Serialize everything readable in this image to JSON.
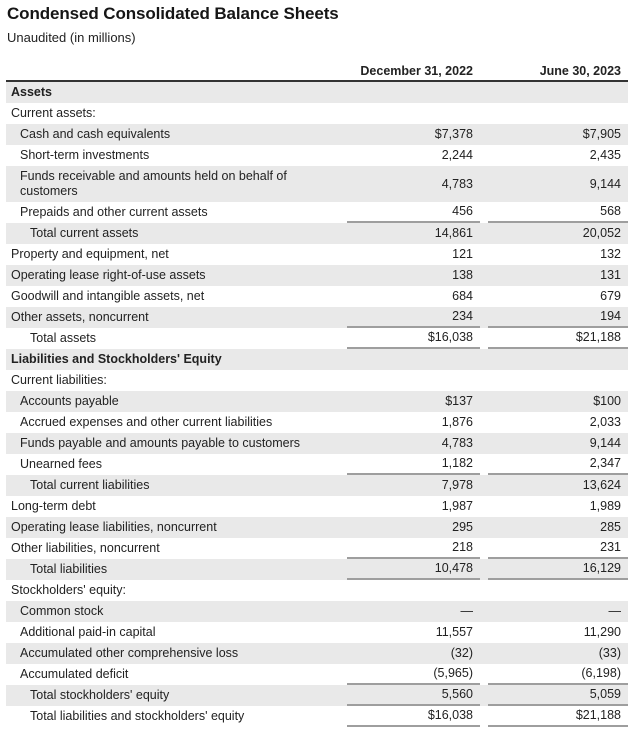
{
  "page": {
    "title": "Condensed Consolidated Balance Sheets",
    "subtitle": "Unaudited (in millions)"
  },
  "table": {
    "column_headers": [
      "December 31, 2022",
      "June 30, 2023"
    ],
    "rows": [
      {
        "label": "Assets",
        "values": [
          "",
          ""
        ],
        "indent": 0,
        "bold": true
      },
      {
        "label": "Current assets:",
        "values": [
          "",
          ""
        ],
        "indent": 0
      },
      {
        "label": "Cash and cash equivalents",
        "values": [
          "$7,378",
          "$7,905"
        ],
        "indent": 1
      },
      {
        "label": "Short-term investments",
        "values": [
          "2,244",
          "2,435"
        ],
        "indent": 1
      },
      {
        "label": "Funds receivable and amounts held on behalf of customers",
        "values": [
          "4,783",
          "9,144"
        ],
        "indent": 1,
        "tall": true
      },
      {
        "label": "Prepaids and other current assets",
        "values": [
          "456",
          "568"
        ],
        "indent": 1,
        "underline": true
      },
      {
        "label": "Total current assets",
        "values": [
          "14,861",
          "20,052"
        ],
        "indent": 2
      },
      {
        "label": "Property and equipment, net",
        "values": [
          "121",
          "132"
        ],
        "indent": 0
      },
      {
        "label": "Operating lease right-of-use assets",
        "values": [
          "138",
          "131"
        ],
        "indent": 0
      },
      {
        "label": "Goodwill and intangible assets, net",
        "values": [
          "684",
          "679"
        ],
        "indent": 0
      },
      {
        "label": "Other assets, noncurrent",
        "values": [
          "234",
          "194"
        ],
        "indent": 0,
        "underline": true
      },
      {
        "label": "Total assets",
        "values": [
          "$16,038",
          "$21,188"
        ],
        "indent": 2,
        "underline": true
      },
      {
        "label": "Liabilities and Stockholders' Equity",
        "values": [
          "",
          ""
        ],
        "indent": 0,
        "bold": true
      },
      {
        "label": "Current liabilities:",
        "values": [
          "",
          ""
        ],
        "indent": 0
      },
      {
        "label": "Accounts payable",
        "values": [
          "$137",
          "$100"
        ],
        "indent": 1
      },
      {
        "label": "Accrued expenses and other current liabilities",
        "values": [
          "1,876",
          "2,033"
        ],
        "indent": 1
      },
      {
        "label": "Funds payable and amounts payable to customers",
        "values": [
          "4,783",
          "9,144"
        ],
        "indent": 1
      },
      {
        "label": "Unearned fees",
        "values": [
          "1,182",
          "2,347"
        ],
        "indent": 1,
        "underline": true
      },
      {
        "label": "Total current liabilities",
        "values": [
          "7,978",
          "13,624"
        ],
        "indent": 2
      },
      {
        "label": "Long-term debt",
        "values": [
          "1,987",
          "1,989"
        ],
        "indent": 0
      },
      {
        "label": "Operating lease liabilities, noncurrent",
        "values": [
          "295",
          "285"
        ],
        "indent": 0
      },
      {
        "label": "Other liabilities, noncurrent",
        "values": [
          "218",
          "231"
        ],
        "indent": 0,
        "underline": true
      },
      {
        "label": "Total liabilities",
        "values": [
          "10,478",
          "16,129"
        ],
        "indent": 2,
        "underline": true
      },
      {
        "label": "Stockholders' equity:",
        "values": [
          "",
          ""
        ],
        "indent": 0
      },
      {
        "label": "Common stock",
        "values": [
          "—",
          "—"
        ],
        "indent": 1
      },
      {
        "label": "Additional paid-in capital",
        "values": [
          "11,557",
          "11,290"
        ],
        "indent": 1
      },
      {
        "label": "Accumulated other comprehensive loss",
        "values": [
          "(32)",
          "(33)"
        ],
        "indent": 1
      },
      {
        "label": "Accumulated deficit",
        "values": [
          "(5,965)",
          "(6,198)"
        ],
        "indent": 1,
        "underline": true
      },
      {
        "label": "Total stockholders' equity",
        "values": [
          "5,560",
          "5,059"
        ],
        "indent": 2,
        "underline": true
      },
      {
        "label": "Total liabilities and stockholders' equity",
        "values": [
          "$16,038",
          "$21,188"
        ],
        "indent": 2,
        "underline": true
      }
    ]
  },
  "colors": {
    "stripe": "#e9e9e9",
    "rule_dark": "#333333",
    "rule_light": "#9e9e9e",
    "text": "#222222"
  }
}
